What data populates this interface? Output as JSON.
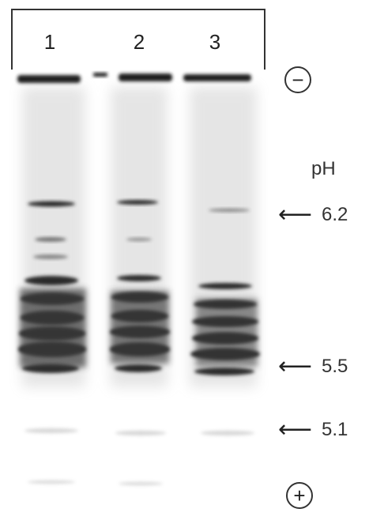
{
  "lanes": [
    "1",
    "2",
    "3"
  ],
  "ph_title": "pH",
  "markers": [
    {
      "value": "6.2"
    },
    {
      "value": "5.5"
    },
    {
      "value": "5.1"
    }
  ],
  "poles": {
    "top": "−",
    "bottom": "+"
  },
  "colors": {
    "band": "#2a2a2a",
    "background": "#ffffff",
    "smear": "#6b6b6b"
  }
}
